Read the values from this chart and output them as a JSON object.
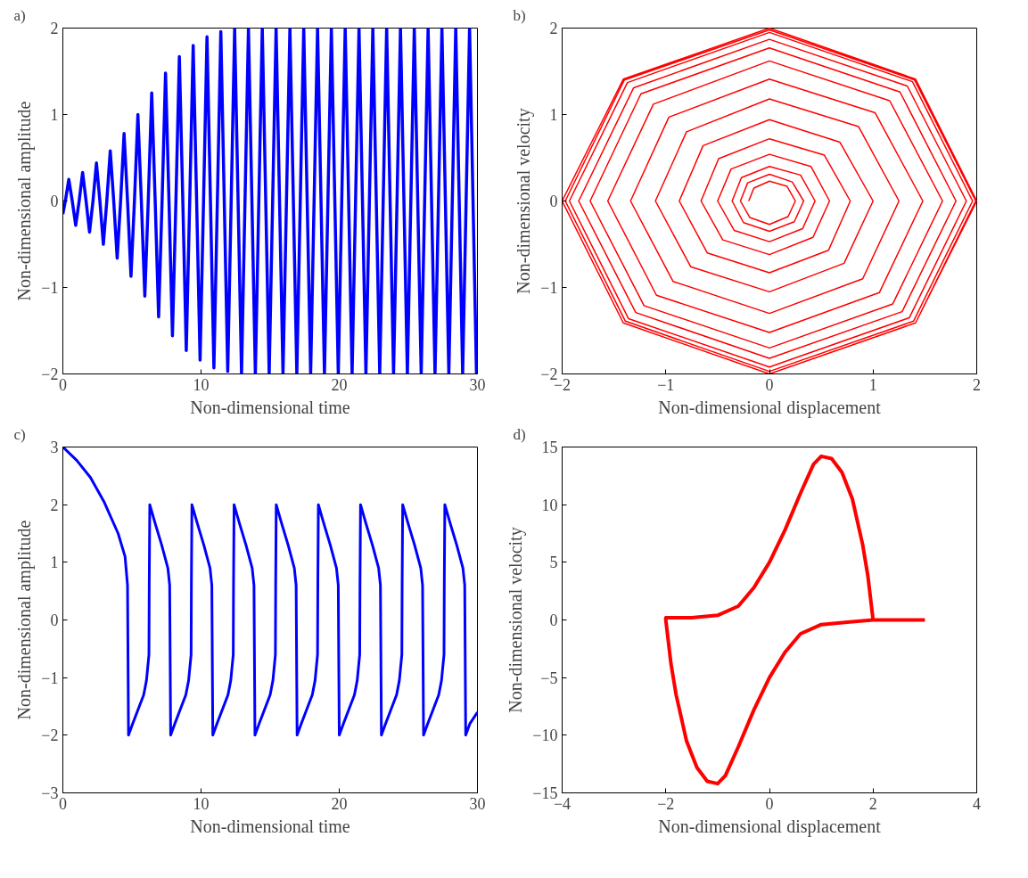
{
  "chart_data": [
    {
      "type": "line",
      "annotations": [
        "a)"
      ],
      "xlabel": "Non-dimensional time",
      "ylabel": "Non-dimensional amplitude",
      "xlim": [
        0,
        30
      ],
      "ylim": [
        -2,
        2
      ],
      "xticks": [
        0,
        10,
        20,
        30
      ],
      "yticks": [
        -2,
        -1,
        0,
        1,
        2
      ],
      "x": [
        0,
        0.18,
        0.43,
        0.68,
        0.93,
        1.18,
        1.43,
        1.68,
        1.93,
        2.18,
        2.43,
        2.68,
        2.93,
        3.18,
        3.43,
        3.68,
        3.93,
        4.18,
        4.43,
        4.68,
        4.93,
        5.18,
        5.43,
        5.68,
        5.93,
        6.18,
        6.43,
        6.68,
        6.93,
        7.18,
        7.43,
        7.68,
        7.93,
        8.18,
        8.43,
        8.68,
        8.93,
        9.18,
        9.43,
        9.68,
        9.93,
        10.18,
        10.43,
        10.68,
        10.93,
        11.18,
        11.43,
        11.68,
        11.93,
        12.18,
        12.43,
        12.68,
        12.93,
        13.18,
        13.43,
        13.68,
        13.93,
        14.18,
        14.43,
        14.68,
        14.93,
        15.18,
        15.43,
        15.68,
        15.93,
        16.18,
        16.43,
        16.68,
        16.93,
        17.18,
        17.43,
        17.68,
        17.93,
        18.18,
        18.43,
        18.68,
        18.93,
        19.18,
        19.43,
        19.68,
        19.93,
        20.18,
        20.43,
        20.68,
        20.93,
        21.18,
        21.43,
        21.68,
        21.93,
        22.18,
        22.43,
        22.68,
        22.93,
        23.18,
        23.43,
        23.68,
        23.93,
        24.18,
        24.43,
        24.68,
        24.93,
        25.18,
        25.43,
        25.68,
        25.93,
        26.18,
        26.43,
        26.68,
        26.93,
        27.18,
        27.43,
        27.68,
        27.93,
        28.18,
        28.43,
        28.68,
        28.93,
        29.18,
        29.43,
        29.68,
        29.93
      ],
      "series": [
        {
          "color": "#0000ff",
          "values": [
            -0.15,
            0,
            0.25,
            0,
            -0.28,
            0,
            0.33,
            0,
            -0.36,
            0,
            0.44,
            0,
            -0.5,
            0,
            0.58,
            0,
            -0.66,
            0,
            0.78,
            0,
            -0.87,
            0,
            1.0,
            0,
            -1.1,
            0,
            1.25,
            0,
            -1.34,
            0,
            1.48,
            0,
            -1.56,
            0,
            1.67,
            0,
            -1.73,
            0,
            1.8,
            0,
            -1.84,
            0,
            1.9,
            0,
            -1.93,
            0,
            1.96,
            0,
            -1.97,
            0,
            1.99,
            0,
            -2,
            0,
            2,
            0,
            -2,
            0,
            2,
            0,
            -2,
            0,
            2,
            0,
            -2,
            0,
            2,
            0,
            -2,
            0,
            2,
            0,
            -2,
            0,
            2,
            0,
            -2,
            0,
            2,
            0,
            -2,
            0,
            2,
            0,
            -2,
            0,
            2,
            0,
            -2,
            0,
            2,
            0,
            -2,
            0,
            2,
            0,
            -2,
            0,
            2,
            0,
            -2,
            0,
            2,
            0,
            -2,
            0,
            2,
            0,
            -2,
            0,
            2,
            0,
            -2,
            0,
            2,
            0,
            -2,
            0,
            2,
            0,
            -2
          ]
        }
      ]
    },
    {
      "type": "line",
      "annotations": [
        "b)"
      ],
      "xlabel": "Non-dimensional displacement",
      "ylabel": "Non-dimensional velocity",
      "xlim": [
        -2,
        2
      ],
      "ylim": [
        -2,
        2
      ],
      "xticks": [
        -2,
        -1,
        0,
        1,
        2
      ],
      "yticks": [
        -2,
        -1,
        0,
        1,
        2
      ],
      "x": [
        -0.2,
        -0.15,
        0,
        0.17,
        0.25,
        0.18,
        0,
        -0.19,
        -0.28,
        -0.21,
        0,
        0.22,
        0.33,
        0.24,
        0,
        -0.25,
        -0.36,
        -0.27,
        0,
        0.3,
        0.44,
        0.32,
        0,
        -0.34,
        -0.5,
        -0.37,
        0,
        0.4,
        0.58,
        0.42,
        0,
        -0.45,
        -0.66,
        -0.49,
        0,
        0.53,
        0.78,
        0.57,
        0,
        -0.6,
        -0.87,
        -0.64,
        0,
        0.68,
        1.0,
        0.72,
        0,
        -0.76,
        -1.1,
        -0.8,
        0,
        0.86,
        1.25,
        0.9,
        0,
        -0.93,
        -1.34,
        -0.97,
        0,
        1.02,
        1.48,
        1.06,
        0,
        -1.09,
        -1.56,
        -1.12,
        0,
        1.16,
        1.67,
        1.19,
        0,
        -1.21,
        -1.73,
        -1.24,
        0,
        1.26,
        1.8,
        1.28,
        0,
        -1.29,
        -1.84,
        -1.31,
        0,
        1.33,
        1.9,
        1.35,
        0,
        -1.36,
        -1.93,
        -1.37,
        0,
        1.38,
        1.96,
        1.39,
        0,
        -1.39,
        -1.97,
        -1.4,
        0,
        1.4,
        1.99,
        1.41,
        0,
        -1.41,
        -2,
        -1.41,
        0,
        1.41,
        2,
        1.41,
        0,
        -1.41,
        -2
      ],
      "series": [
        {
          "color": "#ff0000",
          "values": [
            0,
            0.15,
            0.23,
            0.17,
            0,
            -0.18,
            -0.27,
            -0.19,
            0,
            0.21,
            0.31,
            0.22,
            0,
            -0.24,
            -0.35,
            -0.25,
            0,
            0.27,
            0.4,
            0.3,
            0,
            -0.32,
            -0.47,
            -0.34,
            0,
            0.37,
            0.54,
            0.4,
            0,
            -0.42,
            -0.62,
            -0.45,
            0,
            0.49,
            0.72,
            0.53,
            0,
            -0.57,
            -0.83,
            -0.6,
            0,
            0.64,
            0.94,
            0.68,
            0,
            -0.72,
            -1.05,
            -0.76,
            0,
            0.8,
            1.18,
            0.86,
            0,
            -0.9,
            -1.3,
            -0.93,
            0,
            0.97,
            1.41,
            1.02,
            0,
            -1.06,
            -1.52,
            -1.09,
            0,
            1.12,
            1.62,
            1.16,
            0,
            -1.19,
            -1.7,
            -1.21,
            0,
            1.24,
            1.77,
            1.26,
            0,
            -1.28,
            -1.82,
            -1.29,
            0,
            1.31,
            1.87,
            1.33,
            0,
            -1.35,
            -1.92,
            -1.36,
            0,
            1.37,
            1.95,
            1.38,
            0,
            -1.39,
            -1.97,
            -1.39,
            0,
            1.4,
            1.98,
            1.4,
            0,
            -1.41,
            -2,
            -1.41,
            0,
            1.41,
            2,
            1.41,
            0,
            -1.41,
            -2,
            -1.41,
            0
          ]
        }
      ]
    },
    {
      "type": "line",
      "annotations": [
        "c)"
      ],
      "xlabel": "Non-dimensional time",
      "ylabel": "Non-dimensional amplitude",
      "xlim": [
        0,
        30
      ],
      "ylim": [
        -3,
        3
      ],
      "xticks": [
        0,
        10,
        20,
        30
      ],
      "yticks": [
        -3,
        -2,
        -1,
        0,
        1,
        2,
        3
      ],
      "x": [
        0,
        1,
        2,
        3,
        4,
        4.5,
        4.68,
        4.75,
        5.05,
        5.45,
        5.85,
        6.05,
        6.23,
        6.25,
        6.29,
        6.65,
        7.15,
        7.6,
        7.73,
        7.8,
        8.1,
        8.5,
        8.9,
        9.1,
        9.28,
        9.3,
        9.34,
        9.7,
        10.2,
        10.65,
        10.78,
        10.85,
        11.15,
        11.55,
        11.95,
        12.15,
        12.33,
        12.35,
        12.39,
        12.75,
        13.25,
        13.7,
        13.83,
        13.9,
        14.2,
        14.6,
        15.0,
        15.2,
        15.38,
        15.4,
        15.44,
        15.8,
        16.3,
        16.75,
        16.88,
        16.95,
        17.25,
        17.65,
        18.05,
        18.25,
        18.43,
        18.45,
        18.49,
        18.85,
        19.35,
        19.8,
        19.93,
        20.0,
        20.3,
        20.7,
        21.1,
        21.3,
        21.48,
        21.5,
        21.54,
        21.9,
        22.4,
        22.85,
        22.98,
        23.05,
        23.35,
        23.75,
        24.15,
        24.35,
        24.53,
        24.55,
        24.59,
        24.95,
        25.45,
        25.9,
        26.03,
        26.1,
        26.4,
        26.8,
        27.2,
        27.4,
        27.58,
        27.6,
        27.64,
        28.0,
        28.5,
        28.95,
        29.08,
        29.15,
        29.45,
        30
      ],
      "series": [
        {
          "color": "#0000ff",
          "values": [
            3,
            2.77,
            2.47,
            2.04,
            1.5,
            1.1,
            0.6,
            -2,
            -1.8,
            -1.55,
            -1.3,
            -1.05,
            -0.6,
            0.6,
            2.0,
            1.7,
            1.3,
            0.9,
            0.6,
            -2,
            -1.8,
            -1.55,
            -1.3,
            -1.05,
            -0.6,
            0.6,
            2.0,
            1.7,
            1.3,
            0.9,
            0.6,
            -2,
            -1.8,
            -1.55,
            -1.3,
            -1.05,
            -0.6,
            0.6,
            2.0,
            1.7,
            1.3,
            0.9,
            0.6,
            -2,
            -1.8,
            -1.55,
            -1.3,
            -1.05,
            -0.6,
            0.6,
            2.0,
            1.7,
            1.3,
            0.9,
            0.6,
            -2,
            -1.8,
            -1.55,
            -1.3,
            -1.05,
            -0.6,
            0.6,
            2.0,
            1.7,
            1.3,
            0.9,
            0.6,
            -2,
            -1.8,
            -1.55,
            -1.3,
            -1.05,
            -0.6,
            0.6,
            2.0,
            1.7,
            1.3,
            0.9,
            0.6,
            -2,
            -1.8,
            -1.55,
            -1.3,
            -1.05,
            -0.6,
            0.6,
            2.0,
            1.7,
            1.3,
            0.9,
            0.6,
            -2,
            -1.8,
            -1.55,
            -1.3,
            -1.05,
            -0.6,
            0.6,
            2.0,
            1.7,
            1.3,
            0.9,
            0.6,
            -2,
            -1.8,
            -1.6
          ]
        }
      ]
    },
    {
      "type": "line",
      "annotations": [
        "d)"
      ],
      "xlabel": "Non-dimensional displacement",
      "ylabel": "Non-dimensional velocity",
      "xlim": [
        -4,
        4
      ],
      "ylim": [
        -15,
        15
      ],
      "xticks": [
        -4,
        -2,
        0,
        2,
        4
      ],
      "yticks": [
        -15,
        -10,
        -5,
        0,
        5,
        10,
        15
      ],
      "x": [
        3,
        2,
        1.5,
        1,
        0.6,
        0.3,
        0,
        -0.3,
        -0.6,
        -0.85,
        -1,
        -1.2,
        -1.4,
        -1.6,
        -1.8,
        -1.9,
        -2,
        -2,
        -1.5,
        -1,
        -0.6,
        -0.3,
        0,
        0.3,
        0.6,
        0.85,
        1,
        1.2,
        1.4,
        1.6,
        1.8,
        1.9,
        2
      ],
      "series": [
        {
          "color": "#ff0000",
          "values": [
            0,
            0,
            -0.2,
            -0.4,
            -1.2,
            -2.8,
            -5,
            -7.8,
            -11,
            -13.5,
            -14.2,
            -14,
            -12.8,
            -10.5,
            -6.5,
            -3.8,
            0,
            0.2,
            0.2,
            0.4,
            1.2,
            2.8,
            5,
            7.8,
            11,
            13.5,
            14.2,
            14,
            12.8,
            10.5,
            6.5,
            3.8,
            0
          ]
        }
      ]
    }
  ]
}
